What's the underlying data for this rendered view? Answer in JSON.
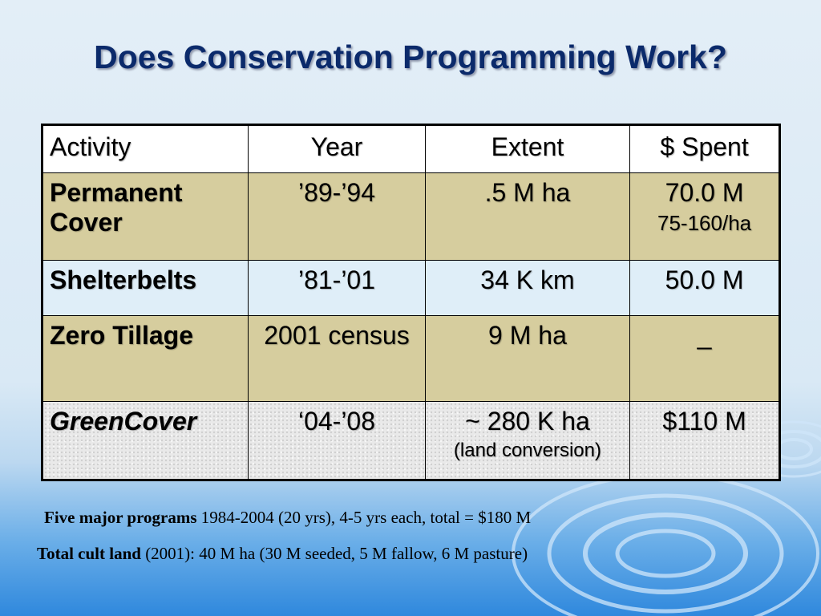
{
  "title": "Does Conservation Programming Work?",
  "table": {
    "headers": [
      "Activity",
      "Year",
      "Extent",
      "$ Spent"
    ],
    "rows": [
      {
        "activity": "Permanent Cover",
        "year": "’89-’94",
        "extent": ".5 M ha",
        "extent_note": "",
        "spent": "70.0 M",
        "spent_note": "75-160/ha"
      },
      {
        "activity": "Shelterbelts",
        "year": "’81-’01",
        "extent": "34 K km",
        "extent_note": "",
        "spent": "50.0 M",
        "spent_note": ""
      },
      {
        "activity": "Zero Tillage",
        "year": "2001 census",
        "extent": "9 M ha",
        "extent_note": "",
        "spent": "_",
        "spent_note": ""
      },
      {
        "activity": "GreenCover",
        "year": "‘04-’08",
        "extent": "~ 280 K ha",
        "extent_note": "(land conversion)",
        "spent": "$110 M",
        "spent_note": ""
      }
    ]
  },
  "notes": [
    {
      "bold": "Five major programs",
      "text": " 1984-2004 (20 yrs), 4-5 yrs each, total = $180 M"
    },
    {
      "bold": "Total cult land",
      "text": " (2001): 40 M ha (30 M seeded, 5 M fallow, 6 M pasture)"
    }
  ],
  "colors": {
    "title": "#0b2a6b",
    "tan_row": "#d6cd9e",
    "light_blue_row": "#dfeef8",
    "greencover_text": "#0a2c8a"
  }
}
